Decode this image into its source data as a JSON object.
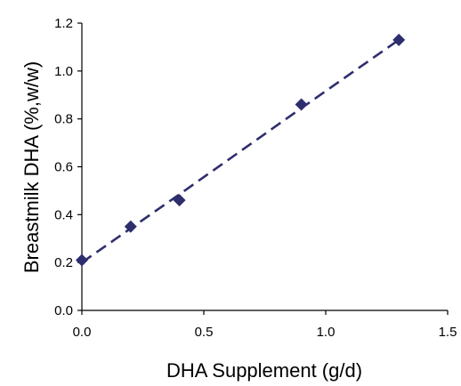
{
  "chart_data": {
    "type": "scatter",
    "title": "",
    "xlabel": "DHA Supplement (g/d)",
    "ylabel": "Breastmilk DHA (%,w/w)",
    "xlim": [
      0.0,
      1.5
    ],
    "ylim": [
      0.0,
      1.2
    ],
    "x_ticks": [
      "0.0",
      "0.5",
      "1.0",
      "1.5"
    ],
    "y_ticks": [
      "0.0",
      "0.2",
      "0.4",
      "0.6",
      "0.8",
      "1.0",
      "1.2"
    ],
    "grid": false,
    "legend": "none",
    "series": [
      {
        "marker": "diamond",
        "color": "#2e2e6e",
        "points": [
          {
            "x": 0.0,
            "y": 0.21
          },
          {
            "x": 0.2,
            "y": 0.35
          },
          {
            "x": 0.4,
            "y": 0.46
          },
          {
            "x": 0.9,
            "y": 0.86
          },
          {
            "x": 1.3,
            "y": 1.13
          }
        ]
      }
    ],
    "trendline": {
      "style": "dashed",
      "color": "#2e2e6e",
      "points": [
        {
          "x": 0.0,
          "y": 0.2
        },
        {
          "x": 0.4,
          "y": 0.485
        },
        {
          "x": 0.9,
          "y": 0.845
        },
        {
          "x": 1.3,
          "y": 1.13
        }
      ]
    }
  }
}
